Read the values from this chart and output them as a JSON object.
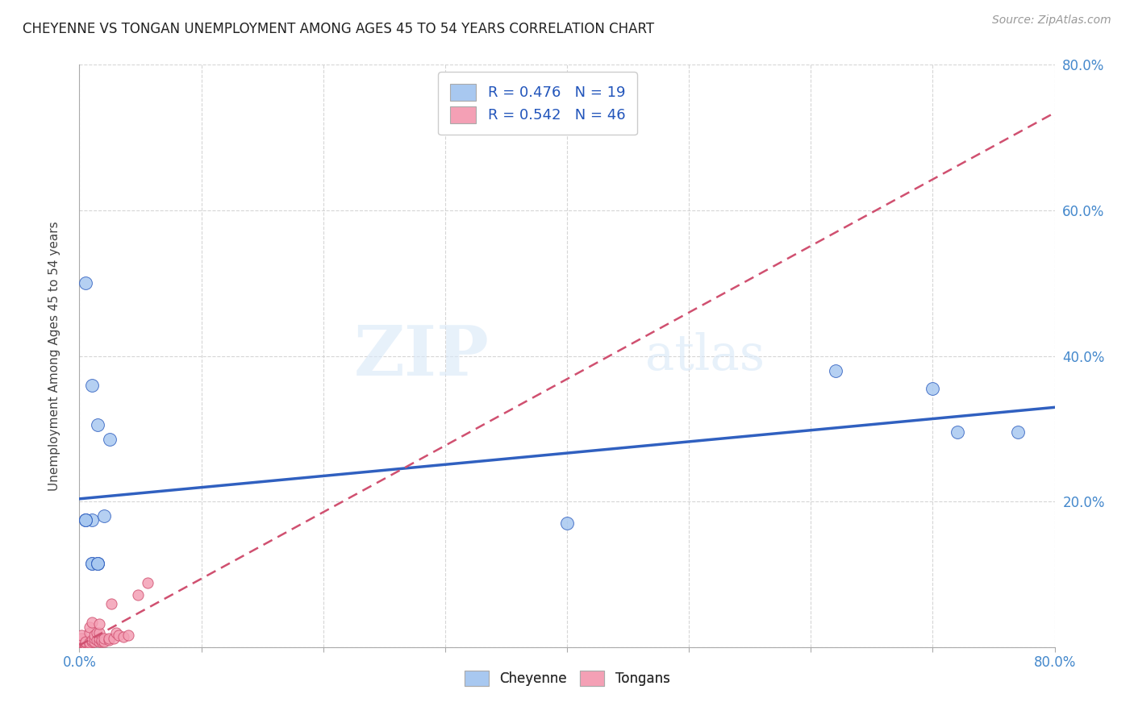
{
  "title": "CHEYENNE VS TONGAN UNEMPLOYMENT AMONG AGES 45 TO 54 YEARS CORRELATION CHART",
  "source": "Source: ZipAtlas.com",
  "ylabel": "Unemployment Among Ages 45 to 54 years",
  "xlim": [
    0,
    0.8
  ],
  "ylim": [
    0,
    0.8
  ],
  "xticks": [
    0.0,
    0.1,
    0.2,
    0.3,
    0.4,
    0.5,
    0.6,
    0.7,
    0.8
  ],
  "yticks": [
    0.0,
    0.2,
    0.4,
    0.6,
    0.8
  ],
  "cheyenne_color": "#A8C8F0",
  "tongan_color": "#F4A0B5",
  "cheyenne_line_color": "#3060C0",
  "tongan_line_color": "#D05070",
  "R_cheyenne": 0.476,
  "N_cheyenne": 19,
  "R_tongan": 0.542,
  "N_tongan": 46,
  "cheyenne_x": [
    0.005,
    0.01,
    0.015,
    0.02,
    0.025,
    0.005,
    0.01,
    0.4,
    0.62,
    0.7,
    0.72,
    0.77,
    0.005,
    0.005,
    0.01,
    0.01,
    0.015,
    0.015,
    0.015
  ],
  "cheyenne_y": [
    0.175,
    0.175,
    0.305,
    0.18,
    0.285,
    0.5,
    0.36,
    0.17,
    0.38,
    0.355,
    0.295,
    0.295,
    0.175,
    0.175,
    0.115,
    0.115,
    0.115,
    0.115,
    0.115
  ],
  "tongan_x": [
    0.002,
    0.002,
    0.002,
    0.002,
    0.002,
    0.002,
    0.002,
    0.002,
    0.002,
    0.002,
    0.002,
    0.002,
    0.005,
    0.005,
    0.005,
    0.005,
    0.008,
    0.008,
    0.008,
    0.008,
    0.01,
    0.01,
    0.01,
    0.012,
    0.012,
    0.012,
    0.014,
    0.014,
    0.016,
    0.016,
    0.016,
    0.016,
    0.018,
    0.018,
    0.02,
    0.02,
    0.024,
    0.024,
    0.026,
    0.028,
    0.03,
    0.032,
    0.036,
    0.04,
    0.048,
    0.056
  ],
  "tongan_y": [
    0.002,
    0.002,
    0.002,
    0.004,
    0.004,
    0.006,
    0.008,
    0.008,
    0.01,
    0.012,
    0.012,
    0.016,
    0.002,
    0.004,
    0.006,
    0.008,
    0.004,
    0.006,
    0.02,
    0.028,
    0.008,
    0.01,
    0.034,
    0.008,
    0.012,
    0.016,
    0.01,
    0.02,
    0.008,
    0.012,
    0.02,
    0.032,
    0.008,
    0.01,
    0.008,
    0.012,
    0.01,
    0.012,
    0.06,
    0.012,
    0.02,
    0.016,
    0.014,
    0.016,
    0.072,
    0.088
  ],
  "watermark_zip": "ZIP",
  "watermark_atlas": "atlas",
  "background_color": "#FFFFFF"
}
